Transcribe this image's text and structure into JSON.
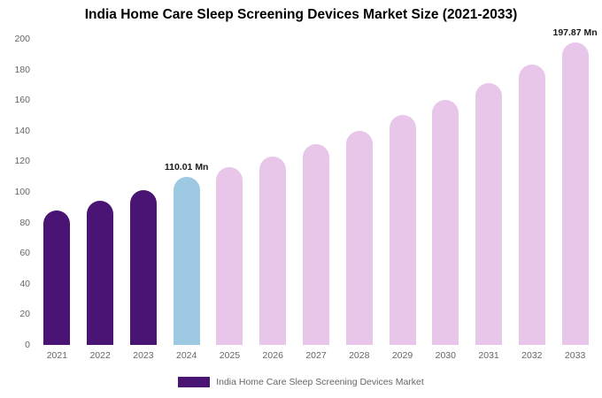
{
  "title": "India Home Care Sleep Screening Devices Market Size (2021-2033)",
  "legend": {
    "label": "India Home Care Sleep Screening Devices Market",
    "color": "#4a1475"
  },
  "colors": {
    "historical_bar": "#4a1475",
    "current_bar": "#9ec9e2",
    "forecast_bar": "#e7c6ea",
    "axis_label": "#666666",
    "annotation_text": "#1a1a1a"
  },
  "chart_data": {
    "type": "bar",
    "title": "India Home Care Sleep Screening Devices Market Size (2021-2033)",
    "xlabel": "",
    "ylabel": "",
    "ylim": [
      0,
      200
    ],
    "yticks": [
      0,
      20,
      40,
      60,
      80,
      100,
      120,
      140,
      160,
      180,
      200
    ],
    "grid": false,
    "legend_position": "bottom",
    "categories": [
      "2021",
      "2022",
      "2023",
      "2024",
      "2025",
      "2026",
      "2027",
      "2028",
      "2029",
      "2030",
      "2031",
      "2032",
      "2033"
    ],
    "values": [
      88,
      94,
      101,
      110.01,
      116,
      123,
      131,
      140,
      150,
      160,
      171,
      183,
      197.87
    ],
    "bar_colors": [
      "#4a1475",
      "#4a1475",
      "#4a1475",
      "#9ec9e2",
      "#e7c6ea",
      "#e7c6ea",
      "#e7c6ea",
      "#e7c6ea",
      "#e7c6ea",
      "#e7c6ea",
      "#e7c6ea",
      "#e7c6ea",
      "#e7c6ea"
    ],
    "annotations": [
      {
        "category": "2024",
        "text": "110.01 Mn"
      },
      {
        "category": "2033",
        "text": "197.87 Mn"
      }
    ]
  }
}
